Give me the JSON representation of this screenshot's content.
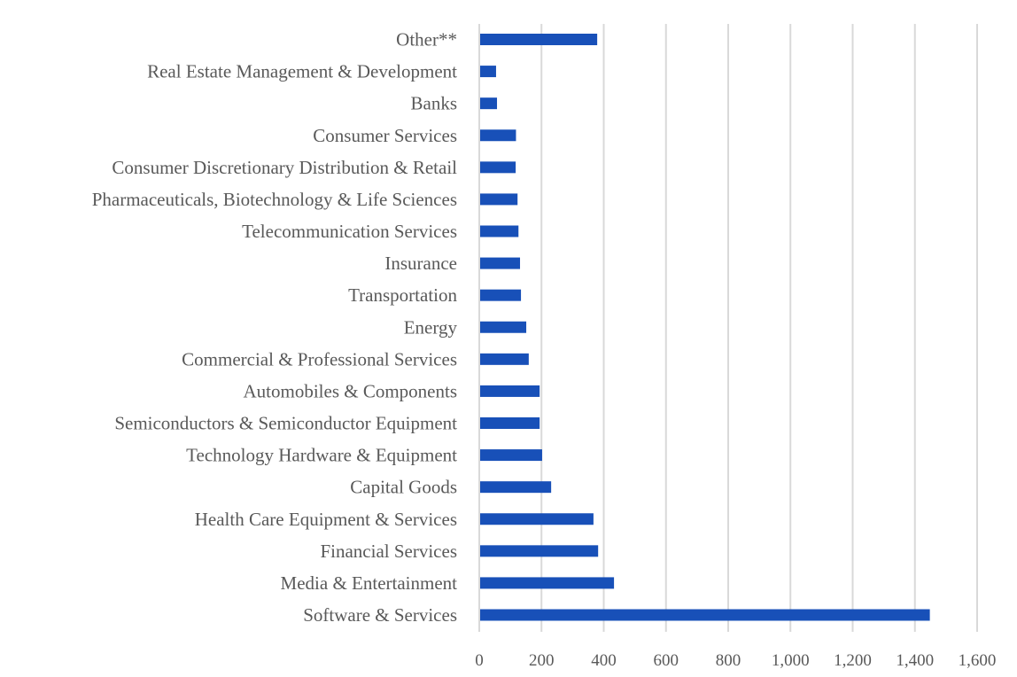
{
  "chart_data": {
    "type": "bar",
    "orientation": "horizontal",
    "title": "",
    "xlabel": "",
    "ylabel": "",
    "xlim": [
      0,
      1600
    ],
    "x_ticks": [
      0,
      200,
      400,
      600,
      800,
      1000,
      1200,
      1400,
      1600
    ],
    "x_tick_labels": [
      "0",
      "200",
      "400",
      "600",
      "800",
      "1,000",
      "1,200",
      "1,400",
      "1,600"
    ],
    "grid": "vertical",
    "legend": "none",
    "bar_color": "#1850b8",
    "categories": [
      "Other**",
      "Real Estate Management & Development",
      "Banks",
      "Consumer Services",
      "Consumer Discretionary Distribution & Retail",
      "Pharmaceuticals, Biotechnology & Life Sciences",
      "Telecommunication Services",
      "Insurance",
      "Transportation",
      "Energy",
      "Commercial & Professional Services",
      "Automobiles & Components",
      "Semiconductors & Semiconductor Equipment",
      "Technology Hardware & Equipment",
      "Capital Goods",
      "Health Care Equipment & Services",
      "Financial Services",
      "Media & Entertainment",
      "Software & Services"
    ],
    "values": [
      379,
      54,
      57,
      118,
      117,
      123,
      126,
      131,
      134,
      151,
      159,
      194,
      194,
      202,
      231,
      367,
      382,
      433,
      1448
    ]
  }
}
